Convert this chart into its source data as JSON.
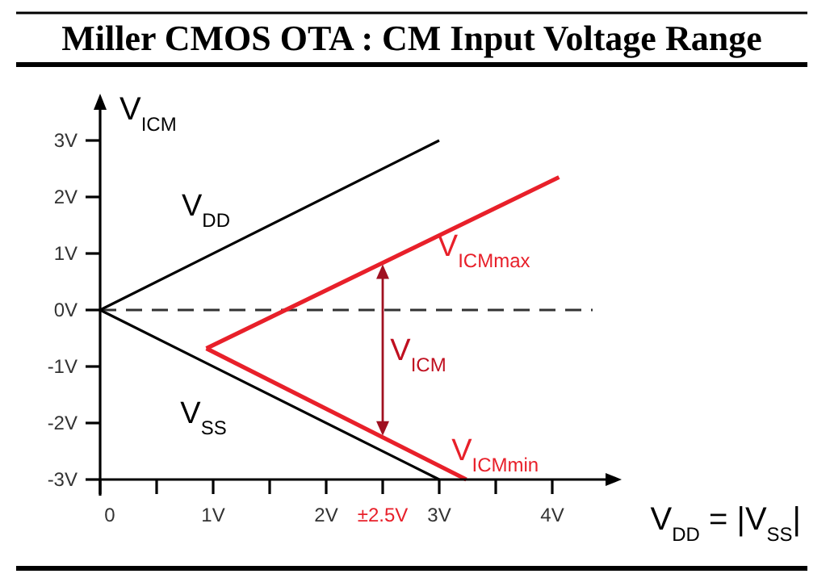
{
  "chart_data": {
    "type": "line",
    "title": "Miller CMOS  OTA : CM Input Voltage Range",
    "xlabel": "V$_{DD}$ = |V$_{SS}$|",
    "ylabel": "V$_{ICM}$",
    "xlim": [
      0,
      4.5
    ],
    "ylim": [
      -3,
      3.6
    ],
    "xticks": [
      0,
      {
        "value": 0.5,
        "label": null
      },
      {
        "value": 1,
        "label": "1V"
      },
      {
        "value": 1.5,
        "label": null
      },
      {
        "value": 2,
        "label": "2V"
      },
      {
        "value": 2.5,
        "label": "±2.5V"
      },
      {
        "value": 3,
        "label": "3V"
      },
      {
        "value": 3.5,
        "label": null
      },
      {
        "value": 4,
        "label": "4V"
      }
    ],
    "yticks": [
      {
        "value": -3,
        "label": "-3V"
      },
      {
        "value": -2,
        "label": "-2V"
      },
      {
        "value": -1,
        "label": "-1V"
      },
      {
        "value": 0,
        "label": "0V"
      },
      {
        "value": 1,
        "label": "1V"
      },
      {
        "value": 2,
        "label": "2V"
      },
      {
        "value": 3,
        "label": "3V"
      }
    ],
    "series": [
      {
        "name": "V$_{DD}$",
        "color": "#000000",
        "x": [
          0,
          3
        ],
        "values": [
          0,
          3
        ]
      },
      {
        "name": "V$_{SS}$",
        "color": "#000000",
        "x": [
          0,
          3
        ],
        "values": [
          0,
          -3
        ]
      },
      {
        "name": "V$_{ICMmax}$",
        "color": "#e8202a",
        "x": [
          0.94,
          4.06
        ],
        "values": [
          -0.68,
          2.35
        ]
      },
      {
        "name": "V$_{ICMmin}$",
        "color": "#e8202a",
        "x": [
          0.94,
          3.24
        ],
        "values": [
          -0.68,
          -3
        ]
      }
    ],
    "ref_lines": [
      {
        "axis": "y",
        "value": 0,
        "line_style": "dashed",
        "color": "#333333"
      }
    ],
    "annotations": [
      "V$_{ICM}$"
    ],
    "marker": "none",
    "line_style": "solid",
    "grid": false,
    "legend": false
  }
}
